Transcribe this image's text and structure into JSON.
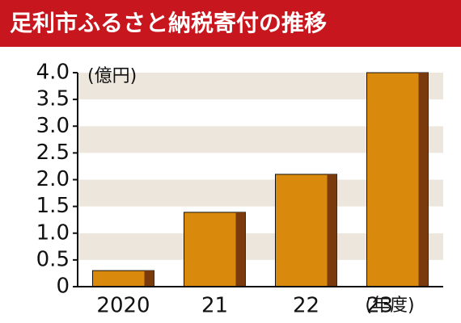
{
  "chart_data": {
    "type": "bar",
    "title": "足利市ふるさと納税寄付の推移",
    "y_unit": "(億円)",
    "x_unit": "(年度)",
    "categories": [
      "2020",
      "21",
      "22",
      "23"
    ],
    "values": [
      0.3,
      1.39,
      2.1,
      4.0
    ],
    "color": "#d98a0c",
    "side_color": "#7a3a0c",
    "ylim": [
      0,
      4.0
    ],
    "yticks": [
      0,
      0.5,
      {
        "value": 1,
        "label": "1.0"
      },
      1.5,
      {
        "value": 2,
        "label": "2.0"
      },
      2.5,
      {
        "value": 3,
        "label": "3.0"
      },
      3.5,
      {
        "value": 4,
        "label": "4.0"
      }
    ],
    "grid": true
  }
}
